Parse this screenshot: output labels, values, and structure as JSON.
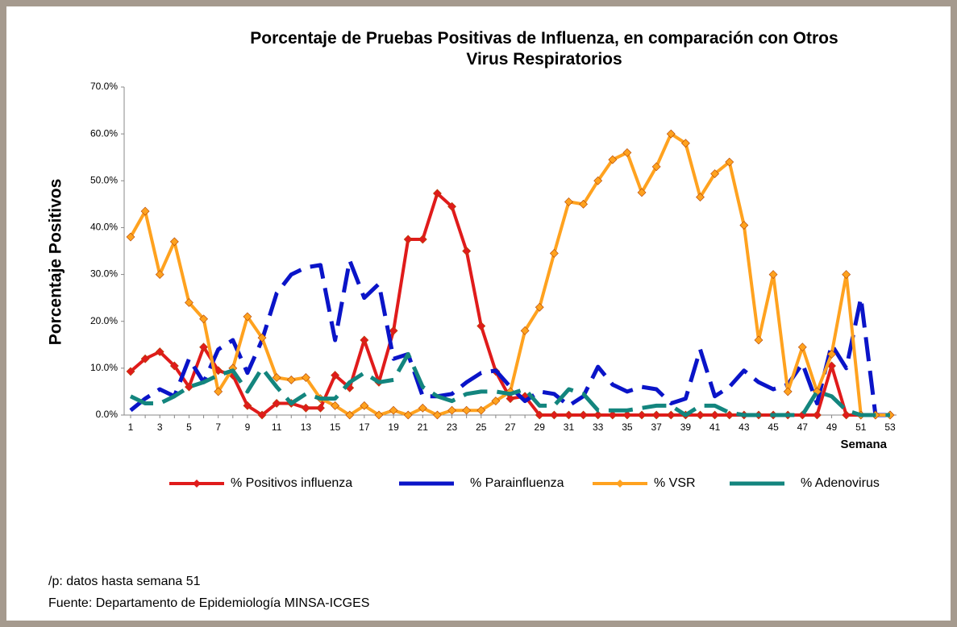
{
  "chart_data": {
    "type": "line",
    "title": "Porcentaje de Pruebas Positivas de Influenza, en comparación con Otros Virus Respiratorios",
    "x_label": "Semana",
    "y_label": "Porcentaje Positivos",
    "categories": [
      "1",
      null,
      "3",
      null,
      "5",
      null,
      "7",
      null,
      "9",
      null,
      "11",
      null,
      "13",
      null,
      "15",
      null,
      "17",
      null,
      "19",
      null,
      "21",
      null,
      "23",
      null,
      "25",
      null,
      "27",
      null,
      "29",
      null,
      "31",
      null,
      "33",
      null,
      "35",
      null,
      "37",
      null,
      "39",
      null,
      "41",
      null,
      "43",
      null,
      "45",
      null,
      "47",
      null,
      "49",
      null,
      "51",
      null,
      "53"
    ],
    "ylim": [
      0,
      70
    ],
    "yticks": [
      {
        "value": 0,
        "label": "0.0%"
      },
      {
        "value": 10,
        "label": "10.0%"
      },
      {
        "value": 20,
        "label": "20.0%"
      },
      {
        "value": 30,
        "label": "30.0%"
      },
      {
        "value": 40,
        "label": "40.0%"
      },
      {
        "value": 50,
        "label": "50.0%"
      },
      {
        "value": 60,
        "label": "60.0%"
      },
      {
        "value": 70,
        "label": "70.0%"
      }
    ],
    "series": [
      {
        "name": "% Positivos influenza",
        "color": "#e01b1b",
        "marker": "diamond",
        "dashed": false,
        "values": [
          9.3,
          12,
          13.5,
          10.5,
          6,
          14.5,
          9.5,
          8.5,
          2,
          0,
          2.5,
          2.5,
          1.5,
          1.5,
          8.5,
          5.8,
          16,
          7,
          18,
          37.5,
          37.5,
          47.3,
          44.5,
          35,
          19,
          9.3,
          3.5,
          4,
          0,
          0,
          0,
          0,
          0,
          0,
          0,
          0,
          0,
          0,
          0,
          0,
          0,
          0,
          0,
          0,
          0,
          0,
          0,
          0,
          10.5,
          0,
          0,
          0,
          0
        ]
      },
      {
        "name": "% Parainfluenza",
        "color": "#0a14c8",
        "marker": null,
        "dashed": true,
        "values": [
          1,
          3.5,
          5.5,
          4,
          12,
          7,
          14,
          16,
          9,
          16,
          26,
          30,
          31.5,
          32,
          16,
          33,
          25,
          28,
          12,
          13,
          4,
          4,
          4.5,
          7,
          9,
          9.5,
          6,
          3,
          5,
          4.5,
          2,
          4,
          10.3,
          6.5,
          5,
          6,
          5.5,
          2.5,
          3.5,
          14,
          4,
          6,
          9.5,
          7,
          5.5,
          6.5,
          11,
          2.5,
          15,
          10,
          25,
          0,
          0
        ]
      },
      {
        "name": "% VSR",
        "color": "#ffa21f",
        "marker": "diamond",
        "dashed": false,
        "values": [
          38,
          43.5,
          30,
          37,
          24,
          20.5,
          5,
          10,
          21,
          16.5,
          8,
          7.5,
          8,
          3.5,
          2,
          0,
          2,
          0,
          1,
          0,
          1.5,
          0,
          1,
          1,
          1,
          3,
          5,
          18,
          23,
          34.5,
          45.5,
          45,
          50,
          54.5,
          56,
          47.5,
          53,
          60,
          58,
          46.5,
          51.5,
          54,
          40.5,
          16,
          30,
          5,
          14.5,
          5,
          13,
          30,
          0,
          0,
          0
        ]
      },
      {
        "name": "% Adenovirus",
        "color": "#13857e",
        "marker": null,
        "dashed": true,
        "values": [
          4,
          2.5,
          2.5,
          4,
          6,
          7,
          8.5,
          9.5,
          5,
          10,
          6,
          2.5,
          4.5,
          3.5,
          3.5,
          7,
          9,
          7,
          7.5,
          13,
          6,
          4,
          3,
          4.5,
          5,
          5,
          4.5,
          5.5,
          2,
          2,
          5.5,
          4.5,
          1,
          1,
          1,
          1.5,
          2,
          2,
          0,
          2,
          2,
          0.5,
          0,
          0,
          0,
          0,
          0,
          5,
          4,
          1,
          0,
          0,
          0
        ]
      }
    ]
  },
  "notes": [
    "/p: datos hasta semana 51",
    "Fuente: Departamento de Epidemiología MINSA-ICGES"
  ]
}
